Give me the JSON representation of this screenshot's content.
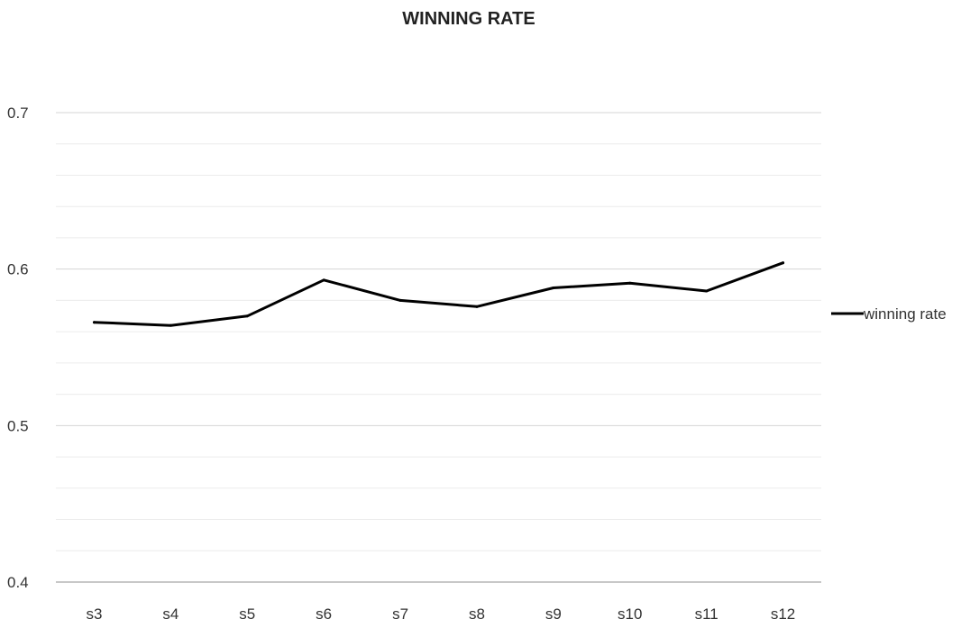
{
  "chart_data": {
    "type": "line",
    "title": "WINNING RATE",
    "xlabel": "",
    "ylabel": "",
    "categories": [
      "s3",
      "s4",
      "s5",
      "s6",
      "s7",
      "s8",
      "s9",
      "s10",
      "s11",
      "s12"
    ],
    "series": [
      {
        "name": "winning rate",
        "values": [
          0.566,
          0.564,
          0.57,
          0.593,
          0.58,
          0.576,
          0.588,
          0.591,
          0.586,
          0.604
        ],
        "color": "#000000"
      }
    ],
    "ylim": [
      0.4,
      0.7
    ],
    "yticks": [
      "0.4",
      "0.5",
      "0.6",
      "0.7"
    ],
    "grid": true,
    "legend": "right"
  }
}
